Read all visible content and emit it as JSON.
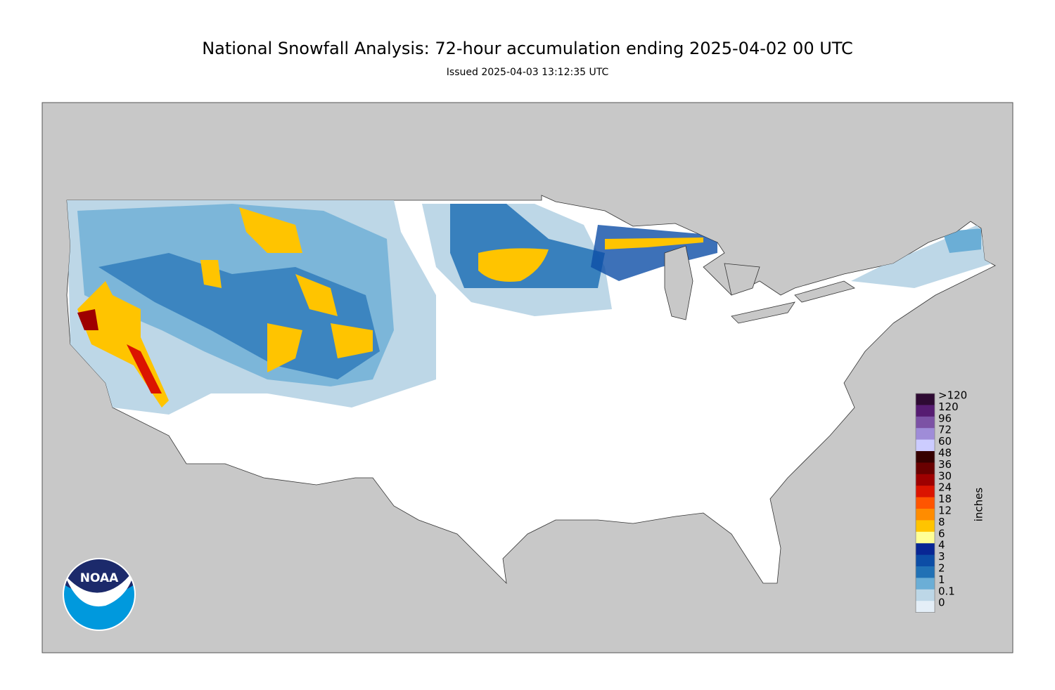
{
  "header": {
    "title": "National Snowfall Analysis: 72-hour accumulation ending 2025-04-02 00 UTC",
    "subtitle": "Issued 2025-04-03 13:12:35 UTC"
  },
  "legend": {
    "title": "inches",
    "items": [
      {
        "label": ">120",
        "color": "#2e0a33"
      },
      {
        "label": "120",
        "color": "#561c72"
      },
      {
        "label": "96",
        "color": "#7c52a5"
      },
      {
        "label": "72",
        "color": "#9f8cd8"
      },
      {
        "label": "60",
        "color": "#ccccff"
      },
      {
        "label": "48",
        "color": "#360000"
      },
      {
        "label": "36",
        "color": "#690000"
      },
      {
        "label": "30",
        "color": "#9e0000"
      },
      {
        "label": "24",
        "color": "#db1400"
      },
      {
        "label": "18",
        "color": "#ff5500"
      },
      {
        "label": "12",
        "color": "#ff8c00"
      },
      {
        "label": "8",
        "color": "#ffc400"
      },
      {
        "label": "6",
        "color": "#ffff96"
      },
      {
        "label": "4",
        "color": "#082694"
      },
      {
        "label": "3",
        "color": "#0c4da6"
      },
      {
        "label": "2",
        "color": "#2171b5"
      },
      {
        "label": "1",
        "color": "#6baed6"
      },
      {
        "label": "0.1",
        "color": "#bdd7e7"
      },
      {
        "label": "0",
        "color": "#e4eef7"
      }
    ]
  },
  "logo": {
    "text": "NOAA"
  }
}
